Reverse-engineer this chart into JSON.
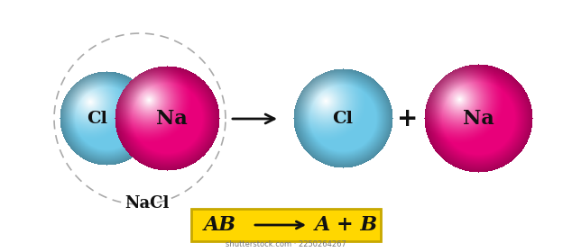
{
  "bg_color": "#ffffff",
  "cl_base": "#6DC8E8",
  "cl_hi": "#ffffff",
  "na_base": "#E8007A",
  "na_hi": "#ffffff",
  "dashed_circle_color": "#aaaaaa",
  "arrow_color": "#111111",
  "yellow_box_color": "#FFD700",
  "yellow_box_edge": "#C8A800",
  "label_NaCl": "NaCl",
  "label_Cl": "Cl",
  "label_Na": "Na",
  "label_plus": "+",
  "formula_AB": "AB",
  "formula_right": "A + B",
  "watermark": "shutterstock.com · 2250264267",
  "fig_w": 6.34,
  "fig_h": 2.8,
  "dpi": 100
}
